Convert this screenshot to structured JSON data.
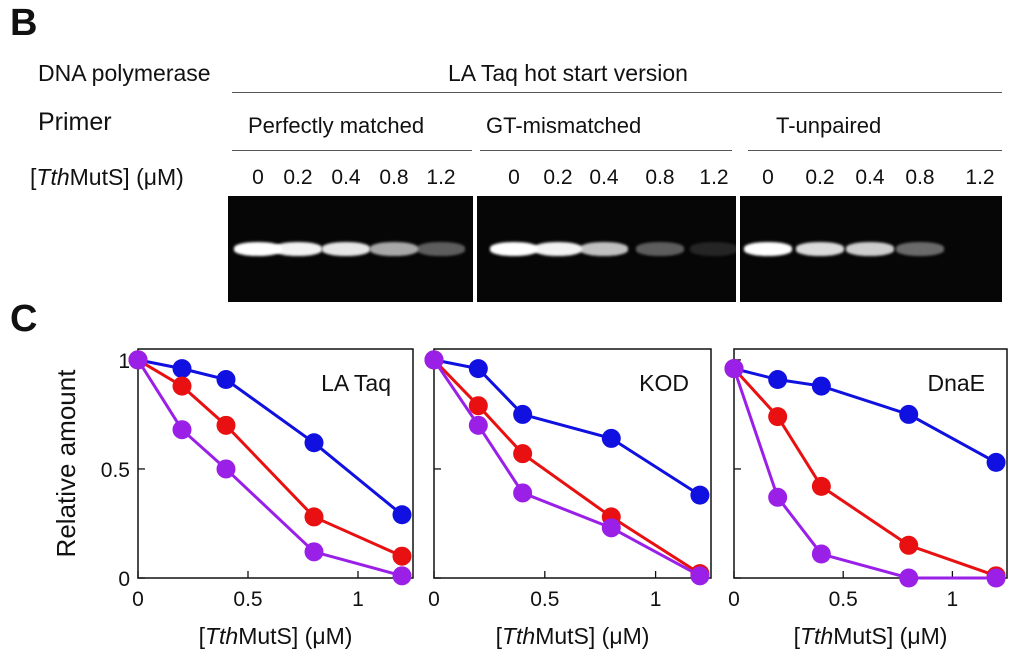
{
  "panel_b": {
    "letter": "B",
    "row_labels": {
      "polymerase": "DNA polymerase",
      "primer": "Primer",
      "conc_prefix": "[",
      "conc_italic": "Tth",
      "conc_rest": "MutS] (μM)"
    },
    "polymerase_name": "LA Taq hot start version",
    "groups": [
      {
        "name": "Perfectly matched",
        "concentrations": [
          "0",
          "0.2",
          "0.4",
          "0.8",
          "1.2"
        ],
        "band_intensity": [
          1.0,
          0.95,
          0.9,
          0.65,
          0.35
        ]
      },
      {
        "name": "GT-mismatched",
        "concentrations": [
          "0",
          "0.2",
          "0.4",
          "0.8",
          "1.2"
        ],
        "band_intensity": [
          1.0,
          0.95,
          0.75,
          0.35,
          0.12
        ]
      },
      {
        "name": "T-unpaired",
        "concentrations": [
          "0",
          "0.2",
          "0.4",
          "0.8",
          "1.2"
        ],
        "band_intensity": [
          1.0,
          0.85,
          0.8,
          0.4,
          0.0
        ]
      }
    ]
  },
  "panel_c": {
    "letter": "C"
  },
  "colors": {
    "series1": "#1010e0",
    "series2": "#e81010",
    "series3": "#9a20e8"
  },
  "chart_data": [
    {
      "type": "line",
      "title": "LA Taq",
      "xlabel": "[TthMutS] (μM)",
      "ylabel": "Relative amount",
      "xlim": [
        0,
        1.25
      ],
      "ylim": [
        0,
        1.05
      ],
      "xticks": [
        "0",
        "0.5",
        "1"
      ],
      "yticks": [
        "0",
        "0.5",
        "1"
      ],
      "x": [
        0,
        0.2,
        0.4,
        0.8,
        1.2
      ],
      "series": [
        {
          "name": "Perfectly matched",
          "values": [
            1.0,
            0.96,
            0.91,
            0.62,
            0.29
          ]
        },
        {
          "name": "GT-mismatched",
          "values": [
            1.0,
            0.88,
            0.7,
            0.28,
            0.1
          ]
        },
        {
          "name": "T-unpaired",
          "values": [
            1.0,
            0.68,
            0.5,
            0.12,
            0.01
          ]
        }
      ]
    },
    {
      "type": "line",
      "title": "KOD",
      "xlabel": "[TthMutS] (μM)",
      "ylabel": "",
      "xlim": [
        0,
        1.25
      ],
      "ylim": [
        0,
        1.05
      ],
      "xticks": [
        "0",
        "0.5",
        "1"
      ],
      "yticks": [],
      "x": [
        0,
        0.2,
        0.4,
        0.8,
        1.2
      ],
      "series": [
        {
          "name": "Perfectly matched",
          "values": [
            1.0,
            0.96,
            0.75,
            0.64,
            0.38
          ]
        },
        {
          "name": "GT-mismatched",
          "values": [
            1.0,
            0.79,
            0.57,
            0.28,
            0.02
          ]
        },
        {
          "name": "T-unpaired",
          "values": [
            1.0,
            0.7,
            0.39,
            0.23,
            0.01
          ]
        }
      ]
    },
    {
      "type": "line",
      "title": "DnaE",
      "xlabel": "[TthMutS] (μM)",
      "ylabel": "",
      "xlim": [
        0,
        1.25
      ],
      "ylim": [
        0,
        1.05
      ],
      "xticks": [
        "0",
        "0.5",
        "1"
      ],
      "yticks": [],
      "x": [
        0,
        0.2,
        0.4,
        0.8,
        1.2
      ],
      "series": [
        {
          "name": "Perfectly matched",
          "values": [
            0.96,
            0.91,
            0.88,
            0.75,
            0.53
          ]
        },
        {
          "name": "GT-mismatched",
          "values": [
            0.96,
            0.74,
            0.42,
            0.15,
            0.01
          ]
        },
        {
          "name": "T-unpaired",
          "values": [
            0.96,
            0.37,
            0.11,
            0.0,
            0.0
          ]
        }
      ]
    }
  ]
}
